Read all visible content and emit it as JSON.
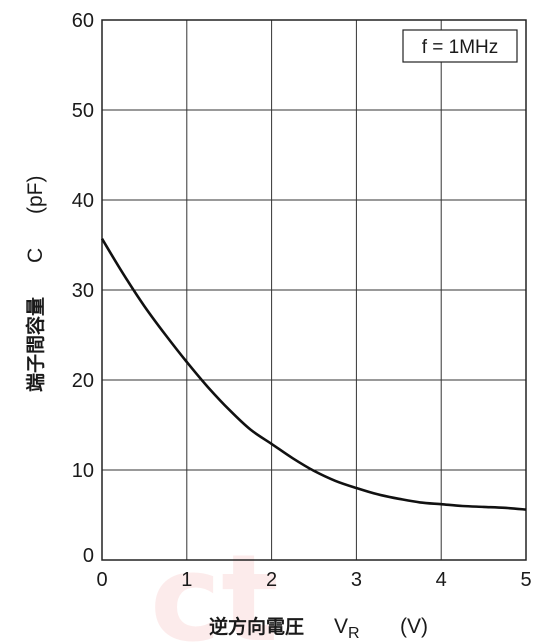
{
  "chart_data": {
    "type": "line",
    "x": [
      0,
      0.25,
      0.5,
      0.75,
      1.0,
      1.25,
      1.5,
      1.75,
      2.0,
      2.25,
      2.5,
      2.75,
      3.0,
      3.25,
      3.5,
      3.75,
      4.0,
      4.25,
      4.5,
      4.75,
      5.0
    ],
    "series": [
      {
        "values": [
          35.7,
          31.8,
          28.2,
          25.0,
          22.0,
          19.2,
          16.7,
          14.5,
          12.9,
          11.3,
          9.9,
          8.8,
          8.0,
          7.3,
          6.8,
          6.4,
          6.2,
          6.0,
          5.9,
          5.8,
          5.6
        ]
      }
    ],
    "xlim": [
      0,
      5
    ],
    "ylim": [
      0,
      60
    ],
    "xticks": [
      "0",
      "1",
      "2",
      "3",
      "4",
      "5"
    ],
    "yticks": [
      "0",
      "10",
      "20",
      "30",
      "40",
      "50",
      "60"
    ],
    "xlabel": {
      "main": "逆方向電圧",
      "symbol": "V",
      "subscript": "R",
      "unit": "(V)"
    },
    "ylabel": {
      "main": "端子間容量",
      "symbol": "C",
      "unit": "(pF)"
    },
    "annotation": "f = 1MHz",
    "grid": true,
    "line_color": "#111111"
  }
}
